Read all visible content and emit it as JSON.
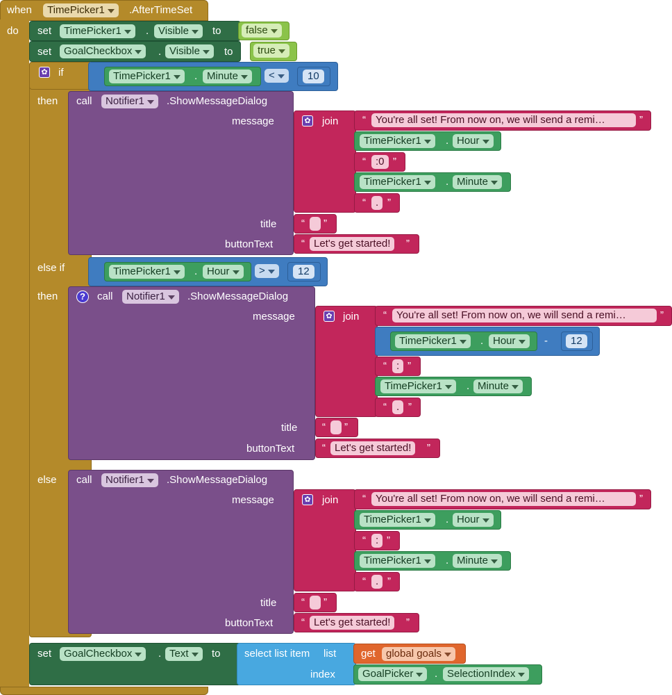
{
  "event": {
    "when": "when",
    "component": "TimePicker1",
    "event": ".AfterTimeSet",
    "do": "do"
  },
  "set1": {
    "set": "set",
    "component": "TimePicker1",
    "dot": ".",
    "property": "Visible",
    "to": "to",
    "value": "false"
  },
  "set2": {
    "set": "set",
    "component": "GoalCheckbox",
    "dot": ".",
    "property": "Visible",
    "to": "to",
    "value": "true"
  },
  "if_block": {
    "if": "if",
    "then": "then",
    "else_if": "else if",
    "then2": "then",
    "else": "else",
    "cond1": {
      "component": "TimePicker1",
      "dot": ".",
      "property": "Minute",
      "op": "<",
      "value": "10"
    },
    "cond2": {
      "component": "TimePicker1",
      "dot": ".",
      "property": "Hour",
      "op": ">",
      "value": "12"
    }
  },
  "notifier": {
    "call": "call",
    "component": "Notifier1",
    "method": ".ShowMessageDialog",
    "message": "message",
    "title": "title",
    "buttonText": "buttonText",
    "join": "join",
    "msg_text": "You're all set! From now on, we will send a remi…",
    "btn_text": "Let's get started!",
    "sep_zero": ":0",
    "sep_colon": ":",
    "dot_text": ".",
    "tp": "TimePicker1",
    "hour": "Hour",
    "minute": "Minute",
    "minus": "-",
    "twelve": "12",
    "q": "“",
    "qc": "”"
  },
  "set3": {
    "set": "set",
    "component": "GoalCheckbox",
    "dot": ".",
    "property": "Text",
    "to": "to",
    "select": "select list item",
    "list": "list",
    "index": "index",
    "get": "get",
    "var": "global goals",
    "picker": "GoalPicker",
    "picker_prop": "SelectionIndex"
  }
}
